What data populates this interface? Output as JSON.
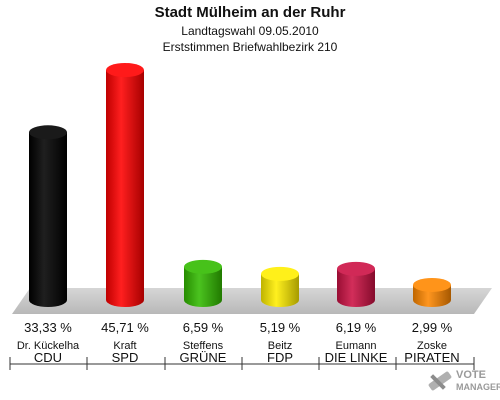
{
  "chart_data": {
    "type": "bar",
    "title": "Stadt Mülheim an der Ruhr",
    "subtitle": "Landtagswahl 09.05.2010",
    "subtitle2": "Erststimmen Briefwahlbezirk 210",
    "categories": [
      "CDU",
      "SPD",
      "GRÜNE",
      "FDP",
      "DIE LINKE",
      "PIRATEN"
    ],
    "candidates": [
      "Dr. Kückelha",
      "Kraft",
      "Steffens",
      "Beitz",
      "Eumann",
      "Zoske"
    ],
    "values": [
      33.33,
      45.71,
      6.59,
      5.19,
      6.19,
      2.99
    ],
    "value_labels": [
      "33,33 %",
      "45,71 %",
      "6,59 %",
      "5,19 %",
      "6,19 %",
      "2,99 %"
    ],
    "colors": [
      "#000000",
      "#ff0000",
      "#33bb00",
      "#ffee00",
      "#cc1144",
      "#ff8800"
    ],
    "ylim": [
      0,
      45.71
    ],
    "grid": false
  },
  "watermark": {
    "line1": "VOTE",
    "line2": "MANAGER"
  }
}
